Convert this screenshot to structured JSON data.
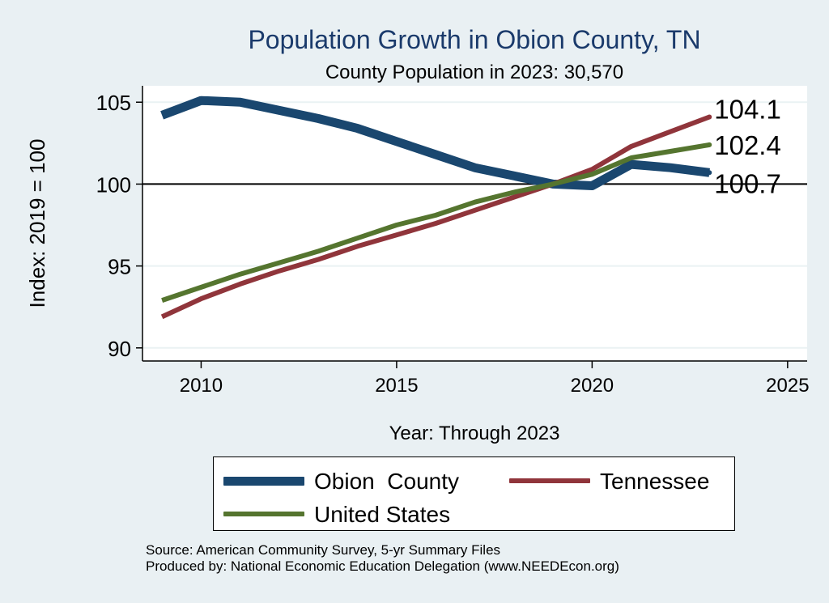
{
  "chart_data": {
    "type": "line",
    "title": "Population Growth in Obion County, TN",
    "subtitle": "County Population in 2023: 30,570",
    "xlabel": "Year: Through 2023",
    "ylabel": "Index: 2019 = 100",
    "xlim": [
      2008.5,
      2025.5
    ],
    "ylim": [
      89.2,
      106
    ],
    "xticks": [
      2010,
      2015,
      2020,
      2025
    ],
    "yticks": [
      90,
      95,
      100,
      105
    ],
    "reference_line": 100,
    "grid": true,
    "legend_position": "bottom",
    "x": [
      2009,
      2010,
      2011,
      2012,
      2013,
      2014,
      2015,
      2016,
      2017,
      2018,
      2019,
      2020,
      2021,
      2022,
      2023
    ],
    "series": [
      {
        "name": "Obion  County",
        "color": "#1a476f",
        "values": [
          104.2,
          105.1,
          105.0,
          104.5,
          104.0,
          103.4,
          102.6,
          101.8,
          101.0,
          100.5,
          100.0,
          99.9,
          101.2,
          101.0,
          100.7
        ],
        "end_label": "100.7"
      },
      {
        "name": "Tennessee",
        "color": "#90353b",
        "values": [
          91.9,
          93.0,
          93.9,
          94.7,
          95.4,
          96.2,
          96.9,
          97.6,
          98.4,
          99.2,
          100.0,
          100.9,
          102.3,
          103.2,
          104.1
        ],
        "end_label": "104.1"
      },
      {
        "name": "United States",
        "color": "#55752f",
        "values": [
          92.9,
          93.7,
          94.5,
          95.2,
          95.9,
          96.7,
          97.5,
          98.1,
          98.9,
          99.5,
          100.0,
          100.6,
          101.6,
          102.0,
          102.4
        ],
        "end_label": "102.4"
      }
    ]
  },
  "notes": {
    "source": "Source: American Community Survey, 5-yr Summary Files",
    "produced": "Produced by: National Economic Education Delegation (www.NEEDEcon.org)"
  }
}
